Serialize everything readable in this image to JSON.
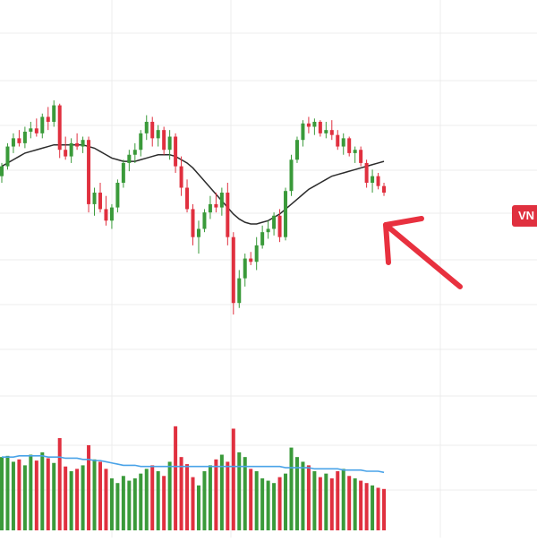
{
  "chart_data": {
    "type": "candlestick",
    "title": "",
    "xlabel": "",
    "ylabel": "",
    "grid": true,
    "last_price_label": "VN",
    "colors": {
      "up": "#3a9a3a",
      "down": "#e0303f",
      "ma": "#2b2b2b",
      "volume_ma": "#4aa3e8",
      "annotation": "#e8313f",
      "grid": "#ececec"
    },
    "candles": [
      {
        "o": 62,
        "h": 70,
        "l": 58,
        "c": 68
      },
      {
        "o": 68,
        "h": 82,
        "l": 66,
        "c": 80
      },
      {
        "o": 80,
        "h": 88,
        "l": 76,
        "c": 85
      },
      {
        "o": 85,
        "h": 90,
        "l": 80,
        "c": 82
      },
      {
        "o": 82,
        "h": 92,
        "l": 79,
        "c": 89
      },
      {
        "o": 89,
        "h": 95,
        "l": 85,
        "c": 91
      },
      {
        "o": 91,
        "h": 97,
        "l": 86,
        "c": 88
      },
      {
        "o": 88,
        "h": 100,
        "l": 85,
        "c": 98
      },
      {
        "o": 98,
        "h": 104,
        "l": 90,
        "c": 95
      },
      {
        "o": 95,
        "h": 108,
        "l": 92,
        "c": 105
      },
      {
        "o": 105,
        "h": 106,
        "l": 73,
        "c": 78
      },
      {
        "o": 78,
        "h": 86,
        "l": 72,
        "c": 74
      },
      {
        "o": 74,
        "h": 85,
        "l": 70,
        "c": 82
      },
      {
        "o": 82,
        "h": 88,
        "l": 78,
        "c": 80
      },
      {
        "o": 80,
        "h": 86,
        "l": 76,
        "c": 84
      },
      {
        "o": 84,
        "h": 86,
        "l": 40,
        "c": 45
      },
      {
        "o": 45,
        "h": 55,
        "l": 38,
        "c": 52
      },
      {
        "o": 52,
        "h": 58,
        "l": 40,
        "c": 42
      },
      {
        "o": 42,
        "h": 50,
        "l": 32,
        "c": 35
      },
      {
        "o": 35,
        "h": 45,
        "l": 30,
        "c": 43
      },
      {
        "o": 43,
        "h": 60,
        "l": 40,
        "c": 58
      },
      {
        "o": 58,
        "h": 72,
        "l": 55,
        "c": 70
      },
      {
        "o": 70,
        "h": 78,
        "l": 65,
        "c": 75
      },
      {
        "o": 75,
        "h": 82,
        "l": 70,
        "c": 78
      },
      {
        "o": 78,
        "h": 90,
        "l": 74,
        "c": 88
      },
      {
        "o": 88,
        "h": 99,
        "l": 84,
        "c": 95
      },
      {
        "o": 95,
        "h": 98,
        "l": 80,
        "c": 85
      },
      {
        "o": 85,
        "h": 93,
        "l": 80,
        "c": 90
      },
      {
        "o": 90,
        "h": 92,
        "l": 75,
        "c": 78
      },
      {
        "o": 78,
        "h": 90,
        "l": 72,
        "c": 86
      },
      {
        "o": 86,
        "h": 88,
        "l": 64,
        "c": 68
      },
      {
        "o": 68,
        "h": 74,
        "l": 50,
        "c": 55
      },
      {
        "o": 55,
        "h": 60,
        "l": 40,
        "c": 42
      },
      {
        "o": 42,
        "h": 45,
        "l": 20,
        "c": 25
      },
      {
        "o": 25,
        "h": 35,
        "l": 15,
        "c": 30
      },
      {
        "o": 30,
        "h": 42,
        "l": 28,
        "c": 40
      },
      {
        "o": 40,
        "h": 50,
        "l": 36,
        "c": 45
      },
      {
        "o": 45,
        "h": 52,
        "l": 40,
        "c": 43
      },
      {
        "o": 43,
        "h": 55,
        "l": 38,
        "c": 52
      },
      {
        "o": 52,
        "h": 58,
        "l": 20,
        "c": 25
      },
      {
        "o": 25,
        "h": 28,
        "l": -22,
        "c": -15
      },
      {
        "o": -15,
        "h": 5,
        "l": -18,
        "c": 0
      },
      {
        "o": 0,
        "h": 15,
        "l": -5,
        "c": 12
      },
      {
        "o": 12,
        "h": 16,
        "l": 8,
        "c": 10
      },
      {
        "o": 10,
        "h": 25,
        "l": 5,
        "c": 20
      },
      {
        "o": 20,
        "h": 32,
        "l": 18,
        "c": 28
      },
      {
        "o": 28,
        "h": 35,
        "l": 24,
        "c": 30
      },
      {
        "o": 30,
        "h": 40,
        "l": 26,
        "c": 38
      },
      {
        "o": 38,
        "h": 42,
        "l": 22,
        "c": 25
      },
      {
        "o": 25,
        "h": 55,
        "l": 23,
        "c": 53
      },
      {
        "o": 53,
        "h": 75,
        "l": 50,
        "c": 72
      },
      {
        "o": 72,
        "h": 86,
        "l": 70,
        "c": 84
      },
      {
        "o": 84,
        "h": 96,
        "l": 80,
        "c": 94
      },
      {
        "o": 94,
        "h": 98,
        "l": 88,
        "c": 92
      },
      {
        "o": 92,
        "h": 97,
        "l": 87,
        "c": 95
      },
      {
        "o": 95,
        "h": 96,
        "l": 86,
        "c": 88
      },
      {
        "o": 88,
        "h": 95,
        "l": 85,
        "c": 90
      },
      {
        "o": 90,
        "h": 96,
        "l": 84,
        "c": 87
      },
      {
        "o": 87,
        "h": 90,
        "l": 78,
        "c": 80
      },
      {
        "o": 80,
        "h": 88,
        "l": 75,
        "c": 85
      },
      {
        "o": 85,
        "h": 86,
        "l": 74,
        "c": 76
      },
      {
        "o": 76,
        "h": 80,
        "l": 70,
        "c": 78
      },
      {
        "o": 78,
        "h": 80,
        "l": 68,
        "c": 70
      },
      {
        "o": 70,
        "h": 72,
        "l": 55,
        "c": 58
      },
      {
        "o": 58,
        "h": 66,
        "l": 52,
        "c": 62
      },
      {
        "o": 62,
        "h": 64,
        "l": 54,
        "c": 56
      },
      {
        "o": 56,
        "h": 58,
        "l": 50,
        "c": 52
      }
    ],
    "ma": [
      68,
      70,
      72,
      74,
      76,
      77,
      78,
      79,
      80,
      81,
      81,
      81,
      81,
      81,
      81,
      80,
      79,
      77,
      75,
      73,
      72,
      71,
      71,
      71,
      72,
      73,
      74,
      75,
      75,
      75,
      74,
      72,
      70,
      67,
      63,
      59,
      55,
      51,
      47,
      43,
      39,
      36,
      34,
      33,
      33,
      34,
      35,
      37,
      39,
      42,
      45,
      48,
      51,
      54,
      56,
      58,
      60,
      62,
      63,
      64,
      65,
      66,
      67,
      68,
      69,
      70,
      71
    ],
    "volumes": [
      62,
      63,
      58,
      60,
      55,
      64,
      59,
      66,
      61,
      57,
      78,
      54,
      50,
      52,
      55,
      72,
      60,
      58,
      52,
      44,
      40,
      46,
      42,
      44,
      48,
      52,
      55,
      50,
      46,
      58,
      88,
      62,
      56,
      45,
      38,
      50,
      55,
      60,
      64,
      58,
      86,
      66,
      62,
      52,
      50,
      44,
      42,
      40,
      45,
      48,
      70,
      62,
      58,
      55,
      50,
      45,
      48,
      44,
      50,
      52,
      46,
      44,
      42,
      40,
      38,
      36,
      35
    ],
    "volume_ma": [
      62,
      62,
      62,
      63,
      63,
      63,
      63,
      63,
      62,
      62,
      62,
      61,
      61,
      61,
      60,
      60,
      59,
      59,
      58,
      57,
      56,
      55,
      55,
      55,
      54,
      54,
      54,
      54,
      54,
      54,
      54,
      54,
      54,
      54,
      54,
      54,
      54,
      54,
      54,
      54,
      54,
      54,
      54,
      54,
      54,
      54,
      54,
      54,
      54,
      53,
      53,
      53,
      53,
      53,
      52,
      52,
      52,
      52,
      52,
      51,
      51,
      51,
      51,
      50,
      50,
      50,
      49
    ],
    "price_range": [
      -35,
      120
    ],
    "volume_range": [
      0,
      100
    ]
  }
}
